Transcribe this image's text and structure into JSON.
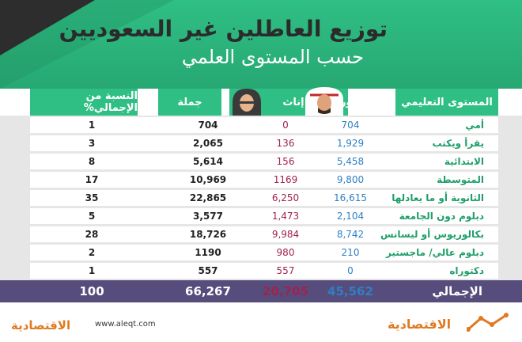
{
  "header": {
    "title": "توزيع العاطلين غير السعوديين",
    "subtitle": "حسب المستوى العلمي"
  },
  "columns": {
    "level": "المستوى التعليمي",
    "males": "ذكور",
    "females": "إناث",
    "total": "جملة",
    "percent": "النسبة من الإجمالي%"
  },
  "rows": [
    {
      "level": "أمي",
      "males": "704",
      "females": "0",
      "total": "704",
      "percent": "1"
    },
    {
      "level": "يقرأ ويكتب",
      "males": "1,929",
      "females": "136",
      "total": "2,065",
      "percent": "3"
    },
    {
      "level": "الابتدائية",
      "males": "5,458",
      "females": "156",
      "total": "5,614",
      "percent": "8"
    },
    {
      "level": "المتوسطة",
      "males": "9,800",
      "females": "1169",
      "total": "10,969",
      "percent": "17"
    },
    {
      "level": "الثانوية أو ما يعادلها",
      "males": "16,615",
      "females": "6,250",
      "total": "22,865",
      "percent": "35"
    },
    {
      "level": "دبلوم دون الجامعة",
      "males": "2,104",
      "females": "1,473",
      "total": "3,577",
      "percent": "5"
    },
    {
      "level": "بكالوريوس أو ليسانس",
      "males": "8,742",
      "females": "9,984",
      "total": "18,726",
      "percent": "28"
    },
    {
      "level": "دبلوم عالي/ ماجستير",
      "males": "210",
      "females": "980",
      "total": "1190",
      "percent": "2"
    },
    {
      "level": "دكتوراه",
      "males": "0",
      "females": "557",
      "total": "557",
      "percent": "1"
    }
  ],
  "totals": {
    "label": "الإجمالي",
    "males": "45,562",
    "females": "20,705",
    "total": "66,267",
    "percent": "100"
  },
  "footer": {
    "url": "www.aleqt.com",
    "logo_text": "الاقتصادية"
  },
  "colors": {
    "green": "#2fbf84",
    "purple": "#564d7c",
    "male_blue": "#2f7fc4",
    "female_red": "#a0224e"
  }
}
